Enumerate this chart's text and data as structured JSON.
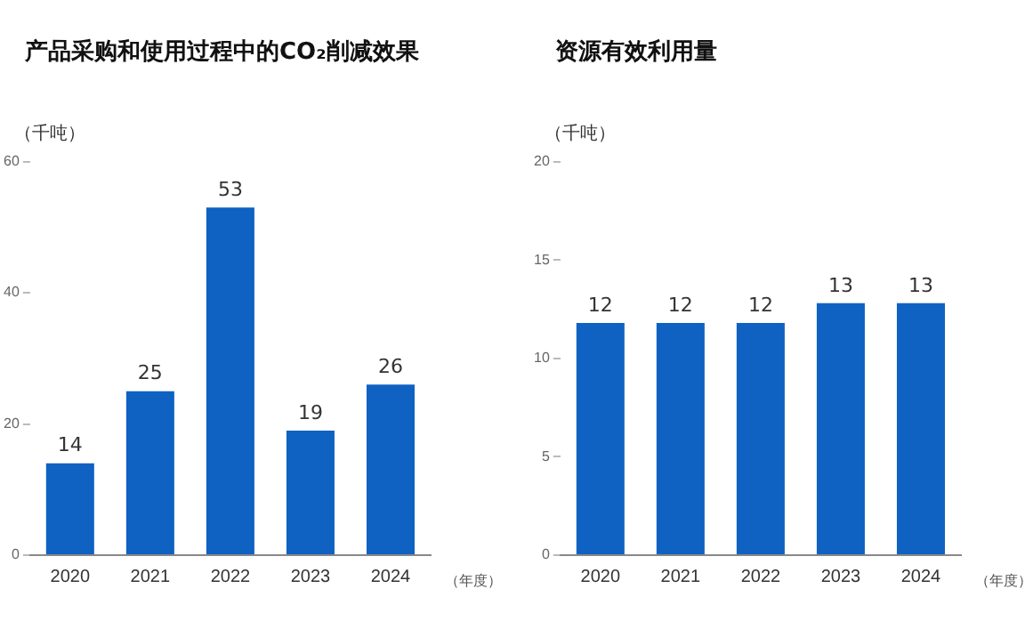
{
  "chart_data": [
    {
      "type": "bar",
      "title": "产品采购和使用过程中的CO₂削减效果",
      "ylabel": "（千吨）",
      "xlabel": "（年度）",
      "categories": [
        "2020",
        "2021",
        "2022",
        "2023",
        "2024"
      ],
      "values": [
        14,
        25,
        53,
        19,
        26
      ],
      "color": "#0f62c2",
      "ylim": [
        0,
        60
      ],
      "yticks": [
        0,
        20,
        40,
        60
      ],
      "grid": false,
      "data_labels": true
    },
    {
      "type": "bar",
      "title": "资源有效利用量",
      "ylabel": "（千吨）",
      "xlabel": "（年度）",
      "categories": [
        "2020",
        "2021",
        "2022",
        "2023",
        "2024"
      ],
      "values": [
        11.8,
        11.8,
        11.8,
        12.8,
        12.8
      ],
      "value_labels": [
        "12",
        "12",
        "12",
        "13",
        "13"
      ],
      "color": "#0f62c2",
      "ylim": [
        0,
        20
      ],
      "yticks": [
        0,
        5,
        10,
        15,
        20
      ],
      "grid": false
    }
  ]
}
